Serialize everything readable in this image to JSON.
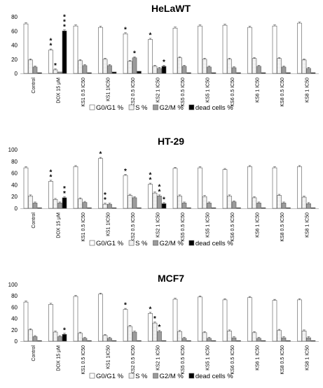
{
  "chart_data": [
    {
      "type": "bar",
      "title": "HeLaWT",
      "ylim": [
        0,
        80
      ],
      "yticks": [
        0,
        20,
        40,
        60,
        80
      ],
      "grid": false,
      "legend_position": "bottom",
      "categories": [
        "Control",
        "DOX 15 μM",
        "KS1 0.5 IC50",
        "KS1 1IC50",
        "KS2 0.5 IC50",
        "KS2 1 IC50",
        "KS5 0.5 IC50",
        "KS5 1 IC50",
        "KS6 0.5 IC50",
        "KS6 1 IC50",
        "KS8 0.5 IC50",
        "KS8 1 IC50"
      ],
      "series": [
        {
          "name": "G0/G1 %",
          "values": [
            70,
            33,
            67,
            65,
            56,
            48,
            64,
            67,
            68,
            65,
            67,
            71
          ]
        },
        {
          "name": "S %",
          "values": [
            19,
            5,
            18,
            20,
            17,
            10,
            22,
            20,
            20,
            21,
            21,
            19
          ]
        },
        {
          "name": "G2/M %",
          "values": [
            9,
            2,
            11,
            11,
            22,
            7,
            10,
            9,
            8,
            10,
            9,
            7
          ]
        },
        {
          "name": "dead cells %",
          "values": [
            1,
            60,
            1,
            2,
            3,
            10,
            1,
            1,
            1,
            1,
            1,
            1
          ]
        }
      ],
      "significance": [
        {
          "category": "DOX 15 μM",
          "series": "G0/G1 %",
          "label": "* *"
        },
        {
          "category": "DOX 15 μM",
          "series": "S %",
          "label": "*"
        },
        {
          "category": "DOX 15 μM",
          "series": "dead cells %",
          "label": "* * *"
        },
        {
          "category": "KS2 0.5 IC50",
          "series": "G0/G1 %",
          "label": "*"
        },
        {
          "category": "KS2 0.5 IC50",
          "series": "G2/M %",
          "label": "*"
        },
        {
          "category": "KS2 1 IC50",
          "series": "G0/G1 %",
          "label": "*"
        },
        {
          "category": "KS2 1 IC50",
          "series": "dead cells %",
          "label": "*"
        }
      ]
    },
    {
      "type": "bar",
      "title": "HT-29",
      "ylim": [
        0,
        100
      ],
      "yticks": [
        0,
        20,
        40,
        60,
        80,
        100
      ],
      "grid": false,
      "legend_position": "bottom",
      "categories": [
        "Control",
        "DOX 15 μM",
        "KS1 0.5 IC50",
        "KS1 1IC50",
        "KS2 0.5 IC50",
        "KS2 1 IC50",
        "KS5 0.5 IC50",
        "KS5 1 IC50",
        "KS6 0.5 IC50",
        "KS6 1 IC50",
        "KS8 0.5 IC50",
        "KS8 1 IC50"
      ],
      "series": [
        {
          "name": "G0/G1 %",
          "values": [
            69,
            46,
            71,
            85,
            56,
            41,
            68,
            69,
            66,
            71,
            69,
            71
          ]
        },
        {
          "name": "S %",
          "values": [
            21,
            15,
            16,
            7,
            22,
            26,
            21,
            20,
            21,
            18,
            22,
            19
          ]
        },
        {
          "name": "G2/M %",
          "values": [
            9,
            9,
            10,
            7,
            18,
            21,
            9,
            9,
            11,
            9,
            9,
            8
          ]
        },
        {
          "name": "dead cells %",
          "values": [
            1,
            18,
            1,
            1,
            1,
            8,
            1,
            1,
            1,
            1,
            1,
            1
          ]
        }
      ],
      "significance": [
        {
          "category": "DOX 15 μM",
          "series": "G0/G1 %",
          "label": "* *"
        },
        {
          "category": "DOX 15 μM",
          "series": "dead cells %",
          "label": "* *"
        },
        {
          "category": "KS1 1IC50",
          "series": "G0/G1 %",
          "label": "*"
        },
        {
          "category": "KS1 1IC50",
          "series": "S %",
          "label": "* *"
        },
        {
          "category": "KS2 0.5 IC50",
          "series": "G0/G1 %",
          "label": "*"
        },
        {
          "category": "KS2 1 IC50",
          "series": "G0/G1 %",
          "label": "* *"
        },
        {
          "category": "KS2 1 IC50",
          "series": "G2/M %",
          "label": "* *"
        },
        {
          "category": "KS2 1 IC50",
          "series": "dead cells %",
          "label": "*"
        }
      ]
    },
    {
      "type": "bar",
      "title": "MCF7",
      "ylim": [
        0,
        100
      ],
      "yticks": [
        0,
        20,
        40,
        60,
        80,
        100
      ],
      "grid": false,
      "legend_position": "bottom",
      "categories": [
        "Control",
        "DOX 15 μM",
        "KS1 0.5 IC50",
        "KS1 1IC50",
        "KS2 0.5 IC50",
        "KS2 1 IC50",
        "KS5 0.5 IC50",
        "KS5 1 IC50",
        "KS6 0.5 IC50",
        "KS6 1 IC50",
        "KS8 0.5 IC50",
        "KS8 1 IC50"
      ],
      "series": [
        {
          "name": "G0/G1 %",
          "values": [
            69,
            65,
            79,
            83,
            56,
            49,
            74,
            78,
            73,
            77,
            72,
            73
          ]
        },
        {
          "name": "S %",
          "values": [
            20,
            16,
            14,
            10,
            26,
            32,
            17,
            15,
            18,
            15,
            19,
            18
          ]
        },
        {
          "name": "G2/M %",
          "values": [
            8,
            8,
            5,
            5,
            16,
            17,
            5,
            5,
            6,
            5,
            6,
            6
          ]
        },
        {
          "name": "dead cells %",
          "values": [
            1,
            12,
            1,
            1,
            1,
            1,
            1,
            1,
            1,
            1,
            1,
            1
          ]
        }
      ],
      "significance": [
        {
          "category": "DOX 15 μM",
          "series": "dead cells %",
          "label": "*"
        },
        {
          "category": "KS2 0.5 IC50",
          "series": "G0/G1 %",
          "label": "*"
        },
        {
          "category": "KS2 1 IC50",
          "series": "G0/G1 %",
          "label": "*"
        },
        {
          "category": "KS2 1 IC50",
          "series": "S %",
          "label": "*"
        },
        {
          "category": "KS2 1 IC50",
          "series": "G2/M %",
          "label": "*"
        }
      ]
    }
  ],
  "colors": {
    "G0/G1 %": "#ffffff",
    "S %": "#ffffff",
    "G2/M %": "#9b9b9b",
    "dead cells %": "#000000",
    "axis": "#bfbfbf",
    "text": "#000000"
  }
}
